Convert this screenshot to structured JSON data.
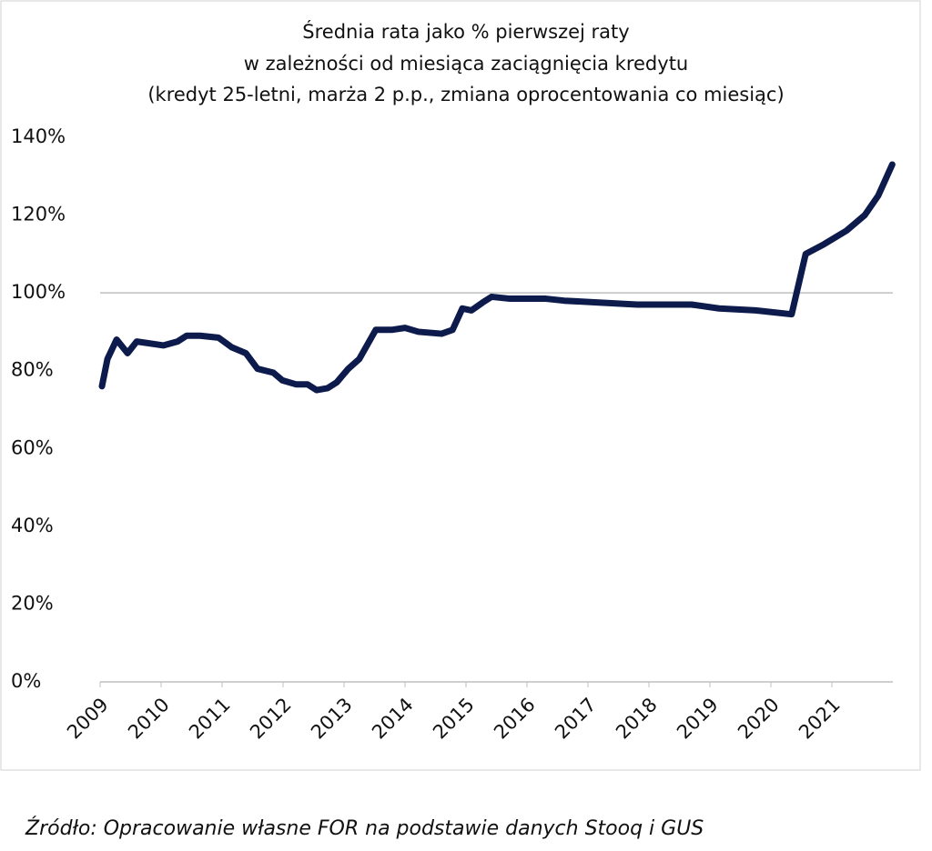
{
  "chart_data": {
    "type": "line",
    "title": [
      "Średnia rata jako % pierwszej raty",
      "w zależności od miesiąca zaciągnięcia kredytu",
      "(kredyt 25-letni, marża 2 p.p., zmiana oprocentowania co miesiąc)"
    ],
    "source": "Źródło: Opracowanie własne FOR na podstawie danych Stooq i GUS",
    "x": [
      2009.03,
      2009.12,
      2009.27,
      2009.45,
      2009.6,
      2010.04,
      2010.27,
      2010.42,
      2010.64,
      2010.94,
      2011.16,
      2011.39,
      2011.58,
      2011.84,
      2011.99,
      2012.21,
      2012.4,
      2012.55,
      2012.73,
      2012.88,
      2013.07,
      2013.25,
      2013.52,
      2013.78,
      2014.0,
      2014.22,
      2014.6,
      2014.78,
      2014.94,
      2015.09,
      2015.27,
      2015.42,
      2015.72,
      2016.31,
      2016.61,
      2017.21,
      2017.81,
      2018.7,
      2019.15,
      2019.75,
      2020.34,
      2020.57,
      2020.87,
      2021.24,
      2021.54,
      2021.76,
      2021.99
    ],
    "series": [
      {
        "color": "#0d1b4c",
        "values": [
          76,
          83,
          88,
          84.5,
          87.5,
          86.5,
          87.5,
          89,
          89,
          88.5,
          86,
          84.5,
          80.5,
          79.5,
          77.5,
          76.5,
          76.5,
          75,
          75.5,
          77,
          80.5,
          83,
          90.5,
          90.5,
          91,
          90,
          89.5,
          90.5,
          96,
          95.5,
          97.5,
          99,
          98.5,
          98.5,
          98,
          97.5,
          97,
          97,
          96,
          95.5,
          94.5,
          110,
          112.5,
          116,
          120,
          125,
          133
        ]
      }
    ],
    "xlim": [
      2009,
      2022
    ],
    "xticks": [
      2009,
      2010,
      2011,
      2012,
      2013,
      2014,
      2015,
      2016,
      2017,
      2018,
      2019,
      2020,
      2021
    ],
    "ylim": [
      0,
      140
    ],
    "yticks": [
      {
        "value": 0,
        "label": "0%"
      },
      {
        "value": 20,
        "label": "20%"
      },
      {
        "value": 40,
        "label": "40%"
      },
      {
        "value": 60,
        "label": "60%"
      },
      {
        "value": 80,
        "label": "80%"
      },
      {
        "value": 100,
        "label": "100%"
      },
      {
        "value": 120,
        "label": "120%"
      },
      {
        "value": 140,
        "label": "140%"
      }
    ],
    "reference_line": 100
  }
}
